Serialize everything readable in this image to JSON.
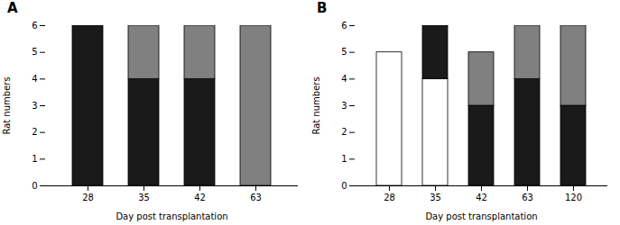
{
  "chart_data": [
    {
      "type": "bar",
      "title": "A",
      "stacked": true,
      "grid": false,
      "categories": [
        "28",
        "35",
        "42",
        "63"
      ],
      "series": [
        {
          "color": "#ffffff",
          "values": [
            0,
            0,
            0,
            0
          ]
        },
        {
          "color": "#1a1a1a",
          "values": [
            6,
            4,
            4,
            0
          ]
        },
        {
          "color": "#808080",
          "values": [
            0,
            2,
            2,
            6
          ]
        }
      ],
      "xlabel": "Day post transplantation",
      "ylabel": "Rat numbers",
      "ylim": [
        0,
        6
      ],
      "yticks": [
        0,
        1,
        2,
        3,
        4,
        5,
        6
      ]
    },
    {
      "type": "bar",
      "title": "B",
      "stacked": true,
      "grid": false,
      "categories": [
        "28",
        "35",
        "42",
        "63",
        "120"
      ],
      "series": [
        {
          "color": "#ffffff",
          "values": [
            5,
            4,
            0,
            0,
            0
          ]
        },
        {
          "color": "#1a1a1a",
          "values": [
            0,
            2,
            3,
            4,
            3
          ]
        },
        {
          "color": "#808080",
          "values": [
            0,
            0,
            2,
            2,
            3
          ]
        }
      ],
      "xlabel": "Day post transplantation",
      "ylabel": "Rat numbers",
      "ylim": [
        0,
        6
      ],
      "yticks": [
        0,
        1,
        2,
        3,
        4,
        5,
        6
      ]
    }
  ]
}
